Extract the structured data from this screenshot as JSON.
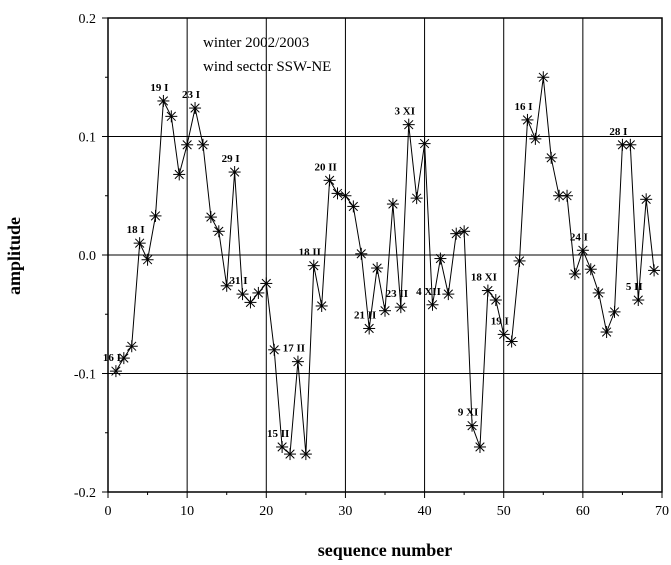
{
  "chart_data": {
    "type": "line",
    "xlabel": "sequence number",
    "ylabel": "amplitude",
    "xlim": [
      0,
      70
    ],
    "ylim": [
      -0.2,
      0.2
    ],
    "x_ticks": [
      0,
      10,
      20,
      30,
      40,
      50,
      60,
      70
    ],
    "y_ticks": [
      -0.2,
      -0.1,
      0.0,
      0.1,
      0.2
    ],
    "x_tick_labels": [
      "0",
      "10",
      "20",
      "30",
      "40",
      "50",
      "60",
      "70"
    ],
    "y_tick_labels": [
      "-0.2",
      "-0.1",
      "0.0",
      "0.1",
      "0.2"
    ],
    "grid": true,
    "marker": "asterisk",
    "annotations": [
      "winter 2002/2003",
      "wind sector SSW-NE"
    ],
    "series": [
      {
        "x": [
          1,
          2,
          3,
          4,
          5,
          6,
          7,
          8,
          9,
          10,
          11,
          12,
          13,
          14,
          15,
          16,
          17,
          18,
          19,
          20,
          21,
          22,
          23,
          24,
          25,
          26,
          27,
          28,
          29,
          30,
          31,
          32,
          33,
          34,
          35,
          36,
          37,
          38,
          39,
          40,
          41,
          42,
          43,
          44,
          45,
          46,
          47,
          48,
          49,
          50,
          51,
          52,
          53,
          54,
          55,
          56,
          57,
          58,
          59,
          60,
          61,
          62,
          63,
          64,
          65,
          66,
          67,
          68,
          69
        ],
        "values": [
          -0.098,
          -0.087,
          -0.077,
          0.01,
          -0.004,
          0.033,
          0.13,
          0.117,
          0.068,
          0.093,
          0.124,
          0.093,
          0.032,
          0.02,
          -0.026,
          0.07,
          -0.033,
          -0.04,
          -0.032,
          -0.024,
          -0.08,
          -0.162,
          -0.168,
          -0.09,
          -0.168,
          -0.009,
          -0.043,
          0.063,
          0.052,
          0.05,
          0.041,
          0.001,
          -0.062,
          -0.011,
          -0.047,
          0.043,
          -0.044,
          0.11,
          0.048,
          0.094,
          -0.042,
          -0.003,
          -0.033,
          0.018,
          0.02,
          -0.144,
          -0.162,
          -0.03,
          -0.038,
          -0.067,
          -0.073,
          -0.005,
          0.114,
          0.098,
          0.15,
          0.082,
          0.05,
          0.05,
          -0.016,
          0.004,
          -0.012,
          -0.032,
          -0.065,
          -0.048,
          0.093,
          0.093,
          -0.038,
          0.047,
          -0.013
        ]
      }
    ],
    "point_labels": [
      {
        "text": "16 I",
        "x": 1,
        "y": -0.098
      },
      {
        "text": "18 I",
        "x": 4,
        "y": 0.01
      },
      {
        "text": "19 I",
        "x": 7,
        "y": 0.13
      },
      {
        "text": "23 I",
        "x": 11,
        "y": 0.124
      },
      {
        "text": "29 I",
        "x": 16,
        "y": 0.07
      },
      {
        "text": "31 I",
        "x": 17,
        "y": -0.033
      },
      {
        "text": "15 II",
        "x": 22,
        "y": -0.162
      },
      {
        "text": "17 II",
        "x": 24,
        "y": -0.09
      },
      {
        "text": "18 II",
        "x": 26,
        "y": -0.009
      },
      {
        "text": "20 II",
        "x": 28,
        "y": 0.063
      },
      {
        "text": "21 II",
        "x": 33,
        "y": -0.062
      },
      {
        "text": "23 II",
        "x": 37,
        "y": -0.044
      },
      {
        "text": "3 XI",
        "x": 38,
        "y": 0.11
      },
      {
        "text": "4 XII",
        "x": 41,
        "y": -0.042
      },
      {
        "text": "9 XI",
        "x": 46,
        "y": -0.144
      },
      {
        "text": "18 XI",
        "x": 48,
        "y": -0.03
      },
      {
        "text": "19 I",
        "x": 50,
        "y": -0.067
      },
      {
        "text": "16 I",
        "x": 53,
        "y": 0.114
      },
      {
        "text": "24 I",
        "x": 60,
        "y": 0.004
      },
      {
        "text": "28 I",
        "x": 65,
        "y": 0.093
      },
      {
        "text": "5 II",
        "x": 67,
        "y": -0.038
      }
    ]
  }
}
